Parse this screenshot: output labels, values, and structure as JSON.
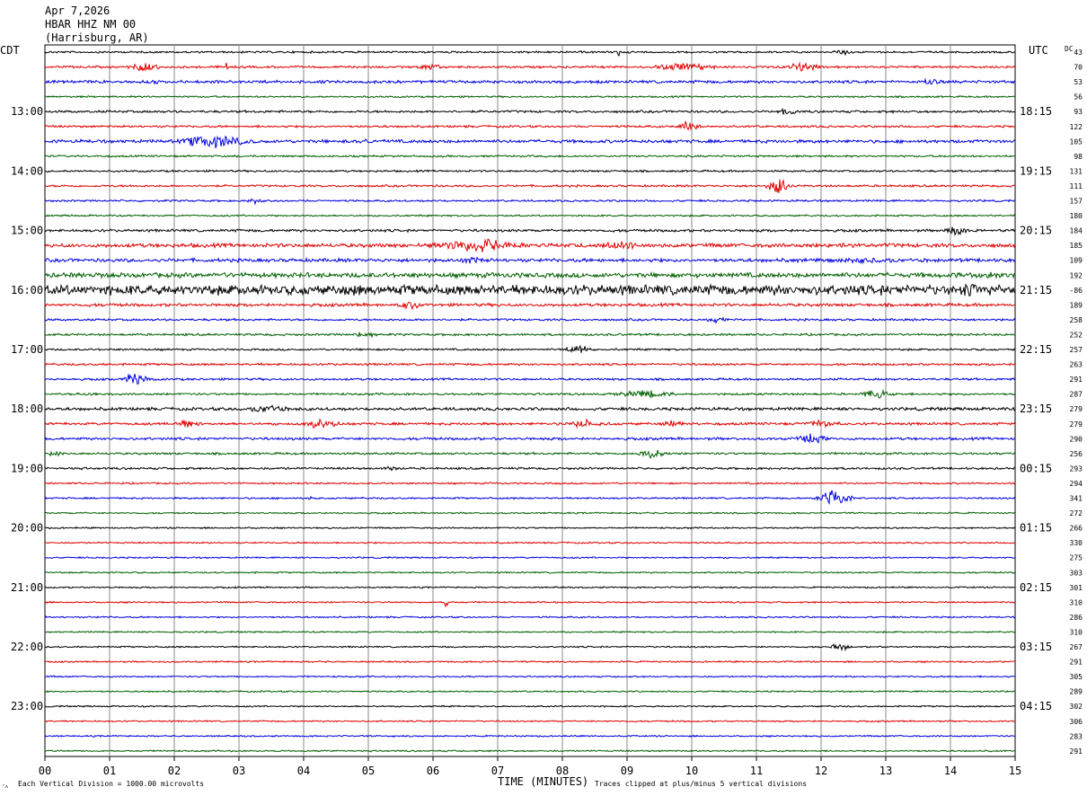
{
  "header": {
    "date": "Apr 7,2026",
    "station": "HBAR HHZ NM 00",
    "location": "(Harrisburg, AR)"
  },
  "left_timezone": "CDT",
  "right_timezone": "UTC",
  "dc_label": "DC",
  "footer": {
    "scale_note": "Each Vertical Division = 1000.00 microvolts",
    "clip_note": "Traces clipped at plus/minus 5 vertical divisions",
    "corner_mark": "’˄"
  },
  "chart_data": {
    "type": "line",
    "title": "",
    "xlabel": "TIME (MINUTES)",
    "ylabel": "",
    "x_ticks": [
      "00",
      "01",
      "02",
      "03",
      "04",
      "05",
      "06",
      "07",
      "08",
      "09",
      "10",
      "11",
      "12",
      "13",
      "14",
      "15"
    ],
    "xlim": [
      0,
      15
    ],
    "trace_count": 48,
    "trace_colors": [
      "#000000",
      "#e00000",
      "#0000e0",
      "#006000"
    ],
    "left_time_labels": [
      {
        "row": 4,
        "label": "13:00"
      },
      {
        "row": 8,
        "label": "14:00"
      },
      {
        "row": 12,
        "label": "15:00"
      },
      {
        "row": 16,
        "label": "16:00"
      },
      {
        "row": 20,
        "label": "17:00"
      },
      {
        "row": 24,
        "label": "18:00"
      },
      {
        "row": 28,
        "label": "19:00"
      },
      {
        "row": 32,
        "label": "20:00"
      },
      {
        "row": 36,
        "label": "21:00"
      },
      {
        "row": 40,
        "label": "22:00"
      },
      {
        "row": 44,
        "label": "23:00"
      }
    ],
    "right_time_labels": [
      {
        "row": 4,
        "label": "18:15"
      },
      {
        "row": 8,
        "label": "19:15"
      },
      {
        "row": 12,
        "label": "20:15"
      },
      {
        "row": 16,
        "label": "21:15"
      },
      {
        "row": 20,
        "label": "22:15"
      },
      {
        "row": 24,
        "label": "23:15"
      },
      {
        "row": 28,
        "label": "00:15"
      },
      {
        "row": 32,
        "label": "01:15"
      },
      {
        "row": 36,
        "label": "02:15"
      },
      {
        "row": 40,
        "label": "03:15"
      },
      {
        "row": 44,
        "label": "04:15"
      }
    ],
    "dc_offsets": [
      "43",
      "70",
      "53",
      "56",
      "93",
      "122",
      "105",
      "98",
      "131",
      "111",
      "157",
      "180",
      "184",
      "185",
      "109",
      "192",
      "-86",
      "189",
      "258",
      "252",
      "257",
      "263",
      "291",
      "287",
      "279",
      "279",
      "290",
      "256",
      "293",
      "294",
      "341",
      "272",
      "266",
      "330",
      "275",
      "303",
      "301",
      "310",
      "286",
      "310",
      "267",
      "291",
      "305",
      "289",
      "302",
      "306",
      "283",
      "291"
    ],
    "noise_levels": [
      0.9,
      1.0,
      1.3,
      0.8,
      1.1,
      1.0,
      1.5,
      0.9,
      0.9,
      1.0,
      0.9,
      0.8,
      1.2,
      1.8,
      1.6,
      2.2,
      4.5,
      1.4,
      1.0,
      1.0,
      0.9,
      1.0,
      1.0,
      1.0,
      1.4,
      1.2,
      1.2,
      1.0,
      1.0,
      0.8,
      0.8,
      0.7,
      0.7,
      0.7,
      0.7,
      0.7,
      0.7,
      0.7,
      0.7,
      0.7,
      0.7,
      0.7,
      0.7,
      0.7,
      0.7,
      0.7,
      0.7,
      0.7
    ],
    "events": [
      {
        "row": 0,
        "minute": 12.35,
        "amp": 4,
        "dur": 0.3
      },
      {
        "row": 0,
        "minute": 8.85,
        "amp": 9,
        "dur": 0.05
      },
      {
        "row": 1,
        "minute": 1.55,
        "amp": 6,
        "dur": 0.4
      },
      {
        "row": 1,
        "minute": 5.95,
        "amp": 5,
        "dur": 0.3
      },
      {
        "row": 1,
        "minute": 9.9,
        "amp": 6,
        "dur": 0.7
      },
      {
        "row": 1,
        "minute": 11.7,
        "amp": 6,
        "dur": 0.4
      },
      {
        "row": 1,
        "minute": 2.8,
        "amp": 7,
        "dur": 0.05
      },
      {
        "row": 2,
        "minute": 13.7,
        "amp": 5,
        "dur": 0.3
      },
      {
        "row": 2,
        "minute": 1.7,
        "amp": 4,
        "dur": 0.1
      },
      {
        "row": 4,
        "minute": 11.5,
        "amp": 6,
        "dur": 0.2
      },
      {
        "row": 5,
        "minute": 9.95,
        "amp": 8,
        "dur": 0.25
      },
      {
        "row": 6,
        "minute": 2.6,
        "amp": 9,
        "dur": 0.8
      },
      {
        "row": 6,
        "minute": 4.95,
        "amp": 4,
        "dur": 0.3
      },
      {
        "row": 9,
        "minute": 11.35,
        "amp": 12,
        "dur": 0.25
      },
      {
        "row": 10,
        "minute": 3.25,
        "amp": 4,
        "dur": 0.2
      },
      {
        "row": 12,
        "minute": 14.1,
        "amp": 6,
        "dur": 0.3
      },
      {
        "row": 13,
        "minute": 6.7,
        "amp": 9,
        "dur": 1.1
      },
      {
        "row": 13,
        "minute": 8.9,
        "amp": 6,
        "dur": 0.7
      },
      {
        "row": 13,
        "minute": 12.35,
        "amp": 4,
        "dur": 0.3
      },
      {
        "row": 14,
        "minute": 6.6,
        "amp": 5,
        "dur": 0.4
      },
      {
        "row": 14,
        "minute": 12.7,
        "amp": 4,
        "dur": 1.2
      },
      {
        "row": 15,
        "minute": 14.6,
        "amp": 5,
        "dur": 0.6
      },
      {
        "row": 15,
        "minute": 1.1,
        "amp": 4,
        "dur": 0.4
      },
      {
        "row": 16,
        "minute": 14.3,
        "amp": 9,
        "dur": 0.4
      },
      {
        "row": 16,
        "minute": 4.8,
        "amp": 8,
        "dur": 0.4
      },
      {
        "row": 17,
        "minute": 5.65,
        "amp": 6,
        "dur": 0.3
      },
      {
        "row": 18,
        "minute": 10.4,
        "amp": 5,
        "dur": 0.25
      },
      {
        "row": 19,
        "minute": 4.95,
        "amp": 5,
        "dur": 0.3
      },
      {
        "row": 20,
        "minute": 8.25,
        "amp": 7,
        "dur": 0.3
      },
      {
        "row": 22,
        "minute": 1.4,
        "amp": 9,
        "dur": 0.3
      },
      {
        "row": 23,
        "minute": 9.3,
        "amp": 5,
        "dur": 0.8
      },
      {
        "row": 23,
        "minute": 12.85,
        "amp": 6,
        "dur": 0.4
      },
      {
        "row": 23,
        "minute": 0.7,
        "amp": 3,
        "dur": 0.2
      },
      {
        "row": 24,
        "minute": 3.45,
        "amp": 6,
        "dur": 0.5
      },
      {
        "row": 25,
        "minute": 2.2,
        "amp": 6,
        "dur": 0.35
      },
      {
        "row": 25,
        "minute": 4.25,
        "amp": 6,
        "dur": 0.5
      },
      {
        "row": 25,
        "minute": 8.35,
        "amp": 6,
        "dur": 0.4
      },
      {
        "row": 25,
        "minute": 9.7,
        "amp": 5,
        "dur": 0.3
      },
      {
        "row": 25,
        "minute": 12.0,
        "amp": 5,
        "dur": 0.5
      },
      {
        "row": 26,
        "minute": 11.85,
        "amp": 7,
        "dur": 0.35
      },
      {
        "row": 27,
        "minute": 9.4,
        "amp": 7,
        "dur": 0.35
      },
      {
        "row": 27,
        "minute": 0.15,
        "amp": 4,
        "dur": 0.2
      },
      {
        "row": 28,
        "minute": 5.35,
        "amp": 3,
        "dur": 0.3
      },
      {
        "row": 30,
        "minute": 12.2,
        "amp": 12,
        "dur": 0.35
      },
      {
        "row": 30,
        "minute": 4.1,
        "amp": 4,
        "dur": 0.05
      },
      {
        "row": 37,
        "minute": 6.2,
        "amp": 9,
        "dur": 0.04
      },
      {
        "row": 40,
        "minute": 12.3,
        "amp": 5,
        "dur": 0.25
      }
    ]
  }
}
